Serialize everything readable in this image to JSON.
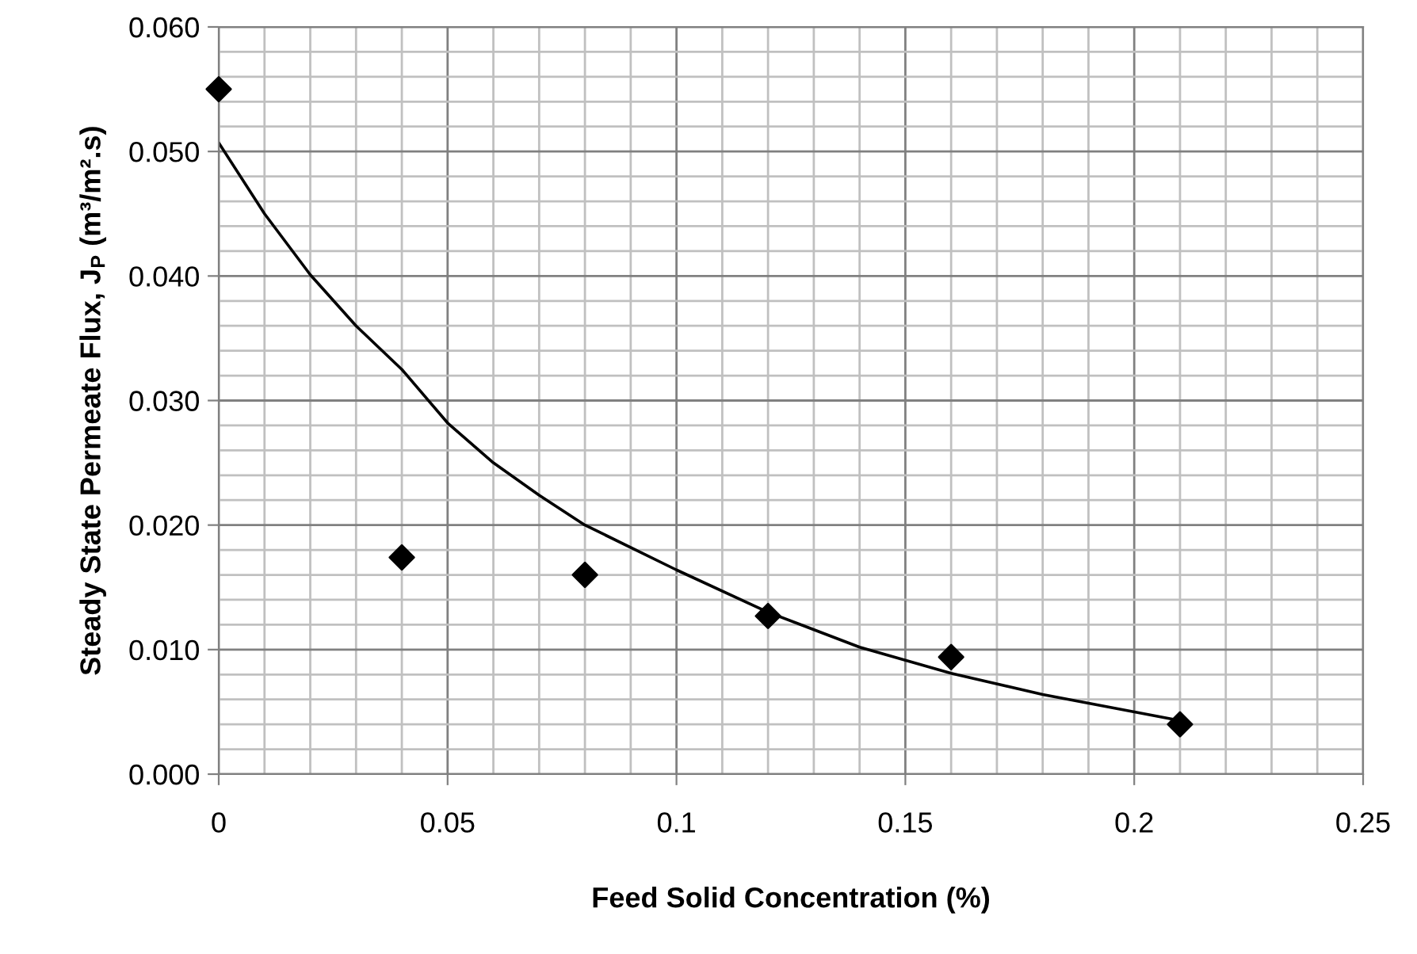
{
  "chart_data": {
    "type": "scatter",
    "xlabel": "Feed Solid Concentration (%)",
    "ylabel": "Steady State Permeate Flux, J$_{P}$ (m³/m².s)",
    "x": [
      0,
      0.04,
      0.08,
      0.12,
      0.16,
      0.21
    ],
    "series": [
      {
        "color": "#000000",
        "marker": "diamond",
        "values": [
          0.055,
          0.0174,
          0.016,
          0.0127,
          0.0094,
          0.004
        ]
      },
      {
        "type": "line",
        "color": "#000000",
        "marker": "none",
        "line_style": "solid",
        "x": [
          0,
          0.01,
          0.02,
          0.03,
          0.04,
          0.05,
          0.06,
          0.07,
          0.08,
          0.1,
          0.12,
          0.14,
          0.16,
          0.18,
          0.21
        ],
        "values": [
          0.0507,
          0.045,
          0.0401,
          0.036,
          0.0325,
          0.0282,
          0.025,
          0.0224,
          0.02,
          0.0164,
          0.013,
          0.0102,
          0.0081,
          0.0064,
          0.0043
        ]
      }
    ],
    "xlim": [
      0,
      0.25
    ],
    "xticks": [
      0,
      0.05,
      0.1,
      0.15,
      0.2,
      0.25
    ],
    "ylim": [
      0,
      0.06
    ],
    "yticks": [
      {
        "value": 0,
        "label": "0.000"
      },
      {
        "value": 0.01,
        "label": "0.010"
      },
      {
        "value": 0.02,
        "label": "0.020"
      },
      {
        "value": 0.03,
        "label": "0.030"
      },
      {
        "value": 0.04,
        "label": "0.040"
      },
      {
        "value": 0.05,
        "label": "0.050"
      },
      {
        "value": 0.06,
        "label": "0.060"
      }
    ],
    "grid": true
  }
}
